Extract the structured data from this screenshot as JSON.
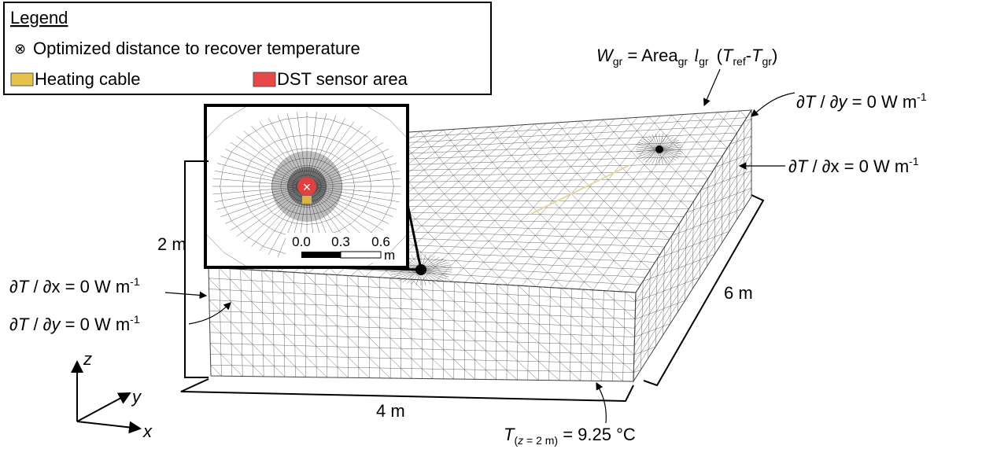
{
  "legend": {
    "title": "Legend",
    "items": [
      "Optimized distance to recover temperature",
      "Heating cable",
      "DST sensor area"
    ]
  },
  "equation": [
    "W",
    "gr",
    " = Area",
    "gr",
    "l",
    "gr",
    "(",
    "T",
    "ref",
    "-",
    "T",
    "gr",
    ")"
  ],
  "boundaries": {
    "top_right": [
      "∂",
      "T",
      " / ∂",
      "y",
      " = 0 W m",
      "-1"
    ],
    "right": [
      "∂",
      "T",
      " / ∂x = 0 W m",
      "-1"
    ],
    "left_x": [
      "∂",
      "T",
      " / ∂x = 0 W m",
      "-1"
    ],
    "left_y": [
      "∂",
      "T",
      " / ∂",
      "y",
      " = 0 W m",
      "-1"
    ],
    "bottom": [
      "T",
      "(",
      "z",
      " = 2 m)",
      " = 9.25 °C"
    ]
  },
  "dimensions": {
    "height": "2 m",
    "depth": "6 m",
    "width": "4 m"
  },
  "inset_scale": {
    "ticks": [
      "0.0",
      "0.3",
      "0.6"
    ],
    "unit": "m"
  },
  "axes": {
    "z": "z",
    "y": "y",
    "x": "x"
  }
}
